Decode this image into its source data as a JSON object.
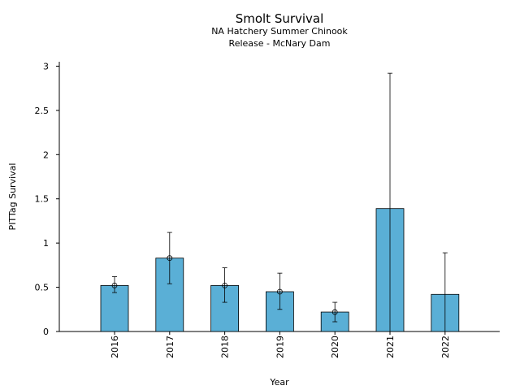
{
  "chart_data": {
    "type": "bar",
    "title": "Smolt Survival",
    "subtitle_lines": [
      "NA Hatchery Summer Chinook",
      "Release - McNary Dam"
    ],
    "xlabel": "Year",
    "ylabel": "PITTag Survival",
    "ylim": [
      0,
      3.05
    ],
    "yticks": [
      0,
      0.5,
      1,
      1.5,
      2,
      2.5,
      3
    ],
    "ytick_labels": [
      "0",
      "0.5",
      "1",
      "1.5",
      "2",
      "2.5",
      "3"
    ],
    "categories": [
      "2016",
      "2017",
      "2018",
      "2019",
      "2020",
      "2021",
      "2022"
    ],
    "values": [
      0.52,
      0.83,
      0.52,
      0.45,
      0.22,
      1.39,
      0.42
    ],
    "error_low": [
      0.44,
      0.54,
      0.33,
      0.25,
      0.11,
      0.0,
      0.0
    ],
    "error_high": [
      0.62,
      1.12,
      0.72,
      0.66,
      0.33,
      2.92,
      0.89
    ],
    "point_markers": [
      true,
      true,
      true,
      true,
      true,
      false,
      false
    ],
    "bar_color": "#5aafd6",
    "bar_edge_color": "#000000",
    "grid": false
  }
}
